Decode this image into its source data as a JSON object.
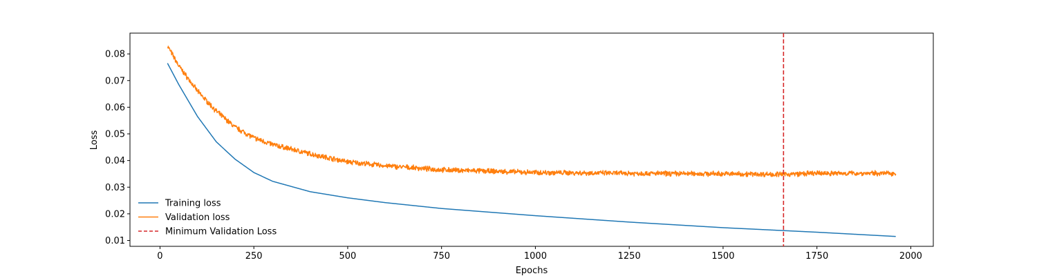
{
  "chart_data": {
    "type": "line",
    "title": "",
    "xlabel": "Epochs",
    "ylabel": "Loss",
    "xlim": [
      -80,
      2060
    ],
    "ylim": [
      0.0078,
      0.0878
    ],
    "xticks": [
      0,
      250,
      500,
      750,
      1000,
      1250,
      1500,
      1750,
      2000
    ],
    "xtick_labels": [
      "0",
      "250",
      "500",
      "750",
      "1000",
      "1250",
      "1500",
      "1750",
      "2000"
    ],
    "yticks": [
      0.01,
      0.02,
      0.03,
      0.04,
      0.05,
      0.06,
      0.07,
      0.08
    ],
    "ytick_labels": [
      "0.01",
      "0.02",
      "0.03",
      "0.04",
      "0.05",
      "0.06",
      "0.07",
      "0.08"
    ],
    "grid": false,
    "legend_position": "lower-left",
    "series": [
      {
        "name": "Training loss",
        "color": "#1f77b4",
        "style": "solid",
        "x": [
          20,
          50,
          100,
          150,
          200,
          250,
          300,
          400,
          500,
          600,
          750,
          1000,
          1250,
          1500,
          1750,
          1960
        ],
        "y": [
          0.0765,
          0.0685,
          0.0565,
          0.047,
          0.0405,
          0.0355,
          0.0322,
          0.0283,
          0.026,
          0.0242,
          0.022,
          0.0193,
          0.0169,
          0.0148,
          0.0131,
          0.0115
        ]
      },
      {
        "name": "Validation loss",
        "color": "#ff7f0e",
        "style": "solid",
        "x": [
          20,
          50,
          100,
          150,
          200,
          250,
          300,
          400,
          500,
          600,
          750,
          1000,
          1250,
          1500,
          1660,
          1750,
          1960
        ],
        "y": [
          0.083,
          0.0755,
          0.066,
          0.0585,
          0.0525,
          0.0485,
          0.046,
          0.0425,
          0.0395,
          0.038,
          0.0365,
          0.0355,
          0.0352,
          0.035,
          0.0348,
          0.0352,
          0.0352
        ]
      }
    ],
    "vlines": [
      {
        "name": "Minimum Validation Loss",
        "x": 1661,
        "color": "#d62728",
        "style": "dashed"
      }
    ]
  }
}
